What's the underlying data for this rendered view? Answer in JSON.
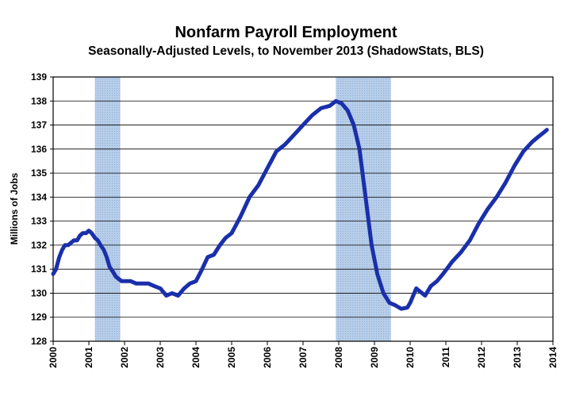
{
  "chart_data": {
    "type": "line",
    "title": "Nonfarm Payroll Employment",
    "subtitle": "Seasonally-Adjusted Levels, to November 2013 (ShadowStats, BLS)",
    "xlabel": "",
    "ylabel": "Millions of Jobs",
    "xlim": [
      2000,
      2014
    ],
    "ylim": [
      128,
      139
    ],
    "x_ticks": [
      "2000",
      "2001",
      "2002",
      "2003",
      "2004",
      "2005",
      "2006",
      "2007",
      "2008",
      "2009",
      "2010",
      "2011",
      "2012",
      "2013",
      "2014"
    ],
    "y_ticks": [
      "128",
      "129",
      "130",
      "131",
      "132",
      "133",
      "134",
      "135",
      "136",
      "137",
      "138",
      "139"
    ],
    "grid": "horizontal",
    "legend": "none",
    "colors": {
      "line": "#1a2faa",
      "recession": "#b7cde8",
      "grid": "#000000"
    },
    "recessions": [
      {
        "start": 2001.17,
        "end": 2001.88
      },
      {
        "start": 2007.92,
        "end": 2009.46
      }
    ],
    "series": [
      {
        "values_x": [
          2000.0,
          2000.08,
          2000.17,
          2000.25,
          2000.33,
          2000.42,
          2000.5,
          2000.58,
          2000.67,
          2000.75,
          2000.83,
          2000.92,
          2001.0,
          2001.08,
          2001.17,
          2001.25,
          2001.33,
          2001.42,
          2001.5,
          2001.58,
          2001.67,
          2001.75,
          2001.83,
          2001.92,
          2002.0,
          2002.17,
          2002.33,
          2002.5,
          2002.67,
          2002.83,
          2003.0,
          2003.17,
          2003.33,
          2003.5,
          2003.67,
          2003.83,
          2004.0,
          2004.17,
          2004.33,
          2004.5,
          2004.67,
          2004.83,
          2005.0,
          2005.25,
          2005.5,
          2005.75,
          2006.0,
          2006.25,
          2006.5,
          2006.75,
          2007.0,
          2007.25,
          2007.5,
          2007.75,
          2007.92,
          2008.08,
          2008.25,
          2008.42,
          2008.58,
          2008.75,
          2008.92,
          2009.08,
          2009.25,
          2009.42,
          2009.58,
          2009.75,
          2009.92,
          2010.0,
          2010.17,
          2010.25,
          2010.42,
          2010.58,
          2010.75,
          2010.92,
          2011.17,
          2011.42,
          2011.67,
          2011.92,
          2012.17,
          2012.42,
          2012.67,
          2012.92,
          2013.17,
          2013.42,
          2013.58,
          2013.75,
          2013.83
        ],
        "values_y": [
          130.8,
          131.0,
          131.5,
          131.8,
          132.0,
          132.0,
          132.1,
          132.2,
          132.2,
          132.4,
          132.5,
          132.5,
          132.6,
          132.5,
          132.3,
          132.2,
          132.0,
          131.8,
          131.5,
          131.1,
          130.9,
          130.7,
          130.6,
          130.5,
          130.5,
          130.5,
          130.4,
          130.4,
          130.4,
          130.3,
          130.2,
          129.9,
          130.0,
          129.9,
          130.2,
          130.4,
          130.5,
          131.0,
          131.5,
          131.6,
          132.0,
          132.3,
          132.5,
          133.2,
          134.0,
          134.5,
          135.2,
          135.9,
          136.2,
          136.6,
          137.0,
          137.4,
          137.7,
          137.8,
          138.0,
          137.9,
          137.6,
          137.0,
          136.0,
          134.0,
          132.0,
          130.8,
          130.0,
          129.6,
          129.5,
          129.35,
          129.4,
          129.6,
          130.2,
          130.1,
          129.9,
          130.3,
          130.5,
          130.8,
          131.3,
          131.7,
          132.2,
          132.9,
          133.5,
          134.0,
          134.6,
          135.3,
          135.9,
          136.3,
          136.5,
          136.7,
          136.8
        ]
      }
    ]
  }
}
